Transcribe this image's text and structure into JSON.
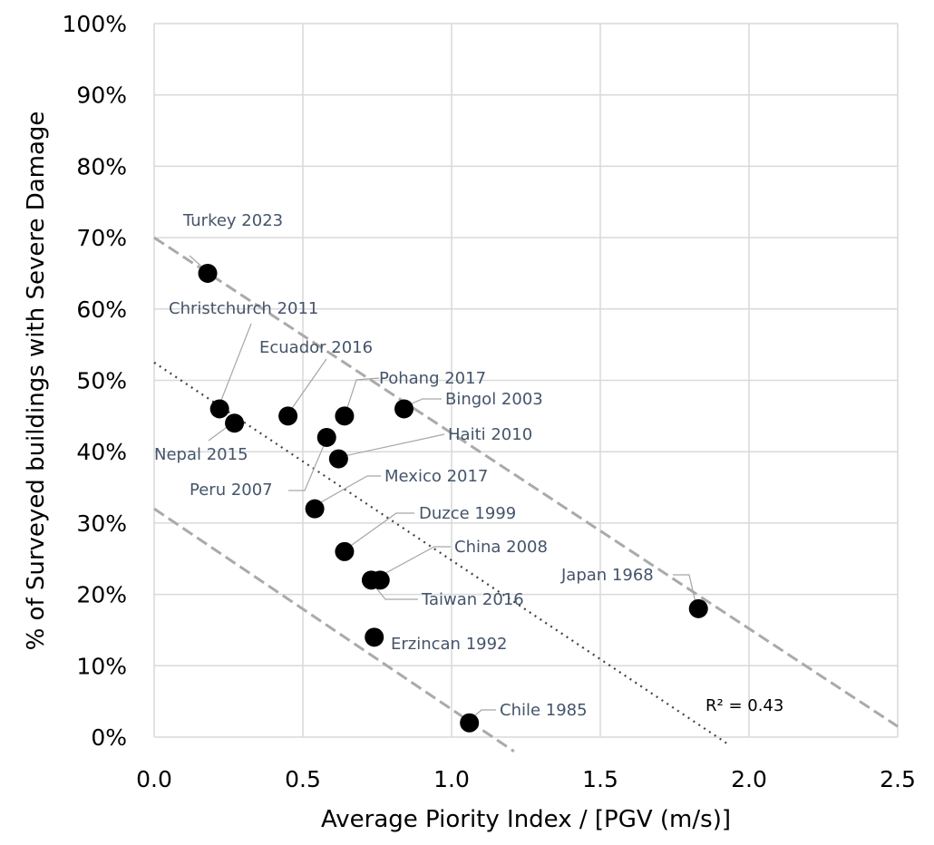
{
  "chart_data": {
    "type": "scatter",
    "xlabel": "Average Piority Index / [PGV (m/s)]",
    "ylabel": "% of Surveyed buildings with Severe Damage",
    "xlim": [
      0,
      2.5
    ],
    "ylim": [
      0,
      1.0
    ],
    "x_ticks": [
      "0.0",
      "0.5",
      "1.0",
      "1.5",
      "2.0",
      "2.5"
    ],
    "y_ticks": [
      "0%",
      "10%",
      "20%",
      "30%",
      "40%",
      "50%",
      "60%",
      "70%",
      "80%",
      "90%",
      "100%"
    ],
    "grid": true,
    "marker_color": "#000000",
    "label_color": "#44546a",
    "points": [
      {
        "label": "Turkey 2023",
        "x": 0.18,
        "y": 0.65
      },
      {
        "label": "Christchurch 2011",
        "x": 0.22,
        "y": 0.46
      },
      {
        "label": "Nepal 2015",
        "x": 0.27,
        "y": 0.44
      },
      {
        "label": "Ecuador 2016",
        "x": 0.45,
        "y": 0.45
      },
      {
        "label": "Pohang 2017",
        "x": 0.64,
        "y": 0.45
      },
      {
        "label": "Bingol 2003",
        "x": 0.84,
        "y": 0.46
      },
      {
        "label": "Peru 2007",
        "x": 0.58,
        "y": 0.42
      },
      {
        "label": "Haiti 2010",
        "x": 0.62,
        "y": 0.39
      },
      {
        "label": "Mexico 2017",
        "x": 0.54,
        "y": 0.32
      },
      {
        "label": "Duzce 1999",
        "x": 0.64,
        "y": 0.26
      },
      {
        "label": "China 2008",
        "x": 0.73,
        "y": 0.22
      },
      {
        "label": "Taiwan 2016",
        "x": 0.76,
        "y": 0.22
      },
      {
        "label": "Erzincan 1992",
        "x": 0.74,
        "y": 0.14
      },
      {
        "label": "Chile 1985",
        "x": 1.06,
        "y": 0.02
      },
      {
        "label": "Japan 1968",
        "x": 1.83,
        "y": 0.18
      }
    ],
    "trendlines": [
      {
        "style": "dotted",
        "color": "#404040",
        "from": [
          0,
          0.525
        ],
        "to": [
          1.93,
          -0.01
        ]
      },
      {
        "style": "dashed",
        "color": "#aaaaaa",
        "from": [
          0,
          0.7
        ],
        "to": [
          2.5,
          0.015
        ]
      },
      {
        "style": "dashed",
        "color": "#aaaaaa",
        "from": [
          0,
          0.32
        ],
        "to": [
          1.21,
          -0.02
        ]
      }
    ],
    "annotation": "R² = 0.43"
  }
}
